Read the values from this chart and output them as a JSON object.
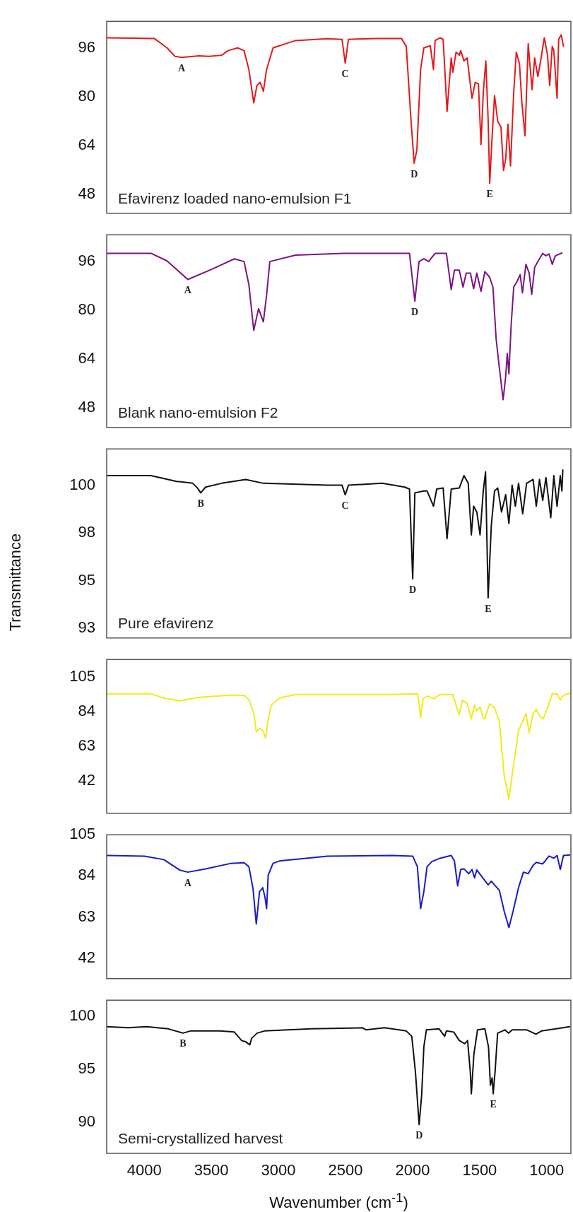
{
  "chart_data": [
    {
      "type": "line",
      "title": "Efavirenz loaded nano-emulsion F1",
      "color": "#e31a1c",
      "xlim": [
        4280,
        820
      ],
      "xticks": [
        4000,
        3500,
        3000,
        2500,
        2000,
        1500,
        1000
      ],
      "ylim": [
        41.8,
        104.7
      ],
      "yticks": [
        48,
        64,
        80,
        96
      ],
      "tick_labels": "y",
      "x": [
        4280,
        3926,
        3830,
        3770,
        3722,
        3591,
        3519,
        3423,
        3375,
        3304,
        3256,
        3220,
        3184,
        3160,
        3136,
        3112,
        3088,
        3040,
        2873,
        2634,
        2526,
        2502,
        2478,
        2275,
        2083,
        2047,
        2011,
        1988,
        1968,
        1940,
        1916,
        1868,
        1844,
        1832,
        1796,
        1772,
        1743,
        1712,
        1700,
        1676,
        1652,
        1641,
        1617,
        1593,
        1557,
        1533,
        1509,
        1490,
        1473,
        1454,
        1437,
        1425,
        1408,
        1389,
        1365,
        1341,
        1322,
        1306,
        1289,
        1270,
        1246,
        1227,
        1203,
        1186,
        1162,
        1138,
        1126,
        1109,
        1090,
        1066,
        1042,
        1018,
        994,
        978,
        959,
        947,
        923,
        911,
        892,
        875
      ],
      "values": [
        99.3,
        99.1,
        96.0,
        93.2,
        92.9,
        93.4,
        93.2,
        93.6,
        95.1,
        96.0,
        95.1,
        88.9,
        78.0,
        83.7,
        84.7,
        81.8,
        88.9,
        96.0,
        98.4,
        99.0,
        98.8,
        91.0,
        98.8,
        99.1,
        99.1,
        96.5,
        71.9,
        58.2,
        62.5,
        88.9,
        96.0,
        96.7,
        88.9,
        98.4,
        99.3,
        98.8,
        75.2,
        92.7,
        88.0,
        94.6,
        93.6,
        95.1,
        91.7,
        92.7,
        79.5,
        84.7,
        84.2,
        64.3,
        81.4,
        91.7,
        72.8,
        51.6,
        66.2,
        80.4,
        71.9,
        70.0,
        55.8,
        59.6,
        71.0,
        57.3,
        81.4,
        94.6,
        90.8,
        78.5,
        67.2,
        97.4,
        90.8,
        82.3,
        92.7,
        86.6,
        92.7,
        99.3,
        93.6,
        83.7,
        96.5,
        95.1,
        79.5,
        98.8,
        100.3,
        96.5
      ],
      "annotations": [
        {
          "text": "A",
          "x": 3722,
          "y": 92.9
        },
        {
          "text": "C",
          "x": 2502,
          "y": 91.0
        },
        {
          "text": "D",
          "x": 1988,
          "y": 58.2
        },
        {
          "text": "E",
          "x": 1425,
          "y": 51.6
        }
      ]
    },
    {
      "type": "line",
      "title": "Blank nano-emulsion F2",
      "color": "#7b1480",
      "xlim": [
        4280,
        820
      ],
      "xticks": [
        4000,
        3500,
        3000,
        2500,
        2000,
        1500,
        1000
      ],
      "ylim": [
        41.5,
        104.8
      ],
      "yticks": [
        48,
        64,
        80,
        96
      ],
      "tick_labels": "y",
      "x": [
        4280,
        3950,
        3830,
        3675,
        3495,
        3328,
        3256,
        3220,
        3184,
        3148,
        3112,
        3088,
        3064,
        2873,
        2514,
        2023,
        1983,
        1952,
        1916,
        1880,
        1832,
        1748,
        1712,
        1688,
        1652,
        1624,
        1600,
        1569,
        1545,
        1521,
        1490,
        1461,
        1425,
        1401,
        1377,
        1353,
        1325,
        1306,
        1294,
        1282,
        1265,
        1246,
        1222,
        1198,
        1181,
        1155,
        1131,
        1112,
        1090,
        1066,
        1030,
        1006,
        983,
        959,
        935,
        887
      ],
      "values": [
        98.7,
        98.7,
        96.2,
        90.1,
        93.5,
        96.9,
        96.0,
        88.4,
        73.4,
        80.5,
        76.2,
        85.0,
        96.0,
        98.1,
        98.7,
        98.7,
        83.0,
        96.0,
        96.9,
        96.0,
        98.7,
        98.7,
        86.8,
        93.2,
        93.2,
        87.6,
        92.2,
        92.2,
        87.1,
        92.2,
        86.2,
        92.7,
        90.8,
        87.6,
        70.5,
        61.0,
        50.6,
        58.2,
        65.8,
        59.1,
        75.3,
        87.6,
        89.4,
        91.7,
        85.7,
        95.1,
        92.2,
        85.2,
        94.1,
        96.0,
        98.7,
        97.9,
        98.5,
        95.1,
        97.9,
        98.8
      ],
      "annotations": [
        {
          "text": "A",
          "x": 3675,
          "y": 90.1
        },
        {
          "text": "D",
          "x": 1983,
          "y": 83.0
        }
      ]
    },
    {
      "type": "line",
      "title": "Pure efavirenz",
      "ylabel": "Transmittance",
      "color": "#111111",
      "xlim": [
        4280,
        820
      ],
      "xticks": [
        4000,
        3500,
        3000,
        2500,
        2000,
        1500,
        1000
      ],
      "ylim": [
        92.5,
        102.4
      ],
      "yticks": [
        93,
        {
          "value": 95.5,
          "label": "95"
        },
        98,
        {
          "value": 100.5,
          "label": "100"
        }
      ],
      "tick_labels": "y",
      "x": [
        4280,
        3950,
        3758,
        3639,
        3603,
        3579,
        3543,
        3423,
        3244,
        3112,
        2634,
        2526,
        2502,
        2478,
        2227,
        2059,
        2023,
        1999,
        1983,
        1916,
        1892,
        1844,
        1820,
        1772,
        1743,
        1712,
        1652,
        1617,
        1585,
        1562,
        1545,
        1521,
        1497,
        1473,
        1456,
        1437,
        1413,
        1389,
        1365,
        1337,
        1306,
        1282,
        1258,
        1234,
        1210,
        1179,
        1150,
        1102,
        1078,
        1054,
        1030,
        1006,
        970,
        947,
        923,
        899,
        887,
        880
      ],
      "values": [
        101.0,
        101.0,
        100.7,
        100.6,
        100.35,
        100.1,
        100.4,
        100.6,
        100.8,
        100.6,
        100.5,
        100.5,
        100.0,
        100.5,
        100.6,
        100.4,
        100.3,
        95.6,
        100.1,
        100.2,
        100.2,
        99.4,
        100.3,
        100.35,
        97.7,
        100.3,
        100.35,
        101.0,
        100.6,
        97.9,
        99.4,
        99.1,
        97.9,
        100.2,
        101.2,
        94.6,
        98.4,
        100.2,
        100.35,
        99.1,
        100.0,
        98.5,
        100.5,
        99.4,
        100.6,
        99.0,
        100.6,
        100.8,
        99.4,
        100.8,
        99.7,
        100.9,
        98.8,
        101.0,
        99.4,
        101.0,
        100.2,
        101.3
      ],
      "annotations": [
        {
          "text": "B",
          "x": 3579,
          "y": 100.1
        },
        {
          "text": "C",
          "x": 2502,
          "y": 100.0
        },
        {
          "text": "D",
          "x": 1999,
          "y": 95.6
        },
        {
          "text": "E",
          "x": 1437,
          "y": 94.6
        }
      ]
    },
    {
      "type": "line",
      "color": "#f2ea1a",
      "xlim": [
        4280,
        820
      ],
      "xticks": [
        4000,
        3500,
        3000,
        2500,
        2000,
        1500,
        1000
      ],
      "ylim": [
        22.4,
        115.6
      ],
      "yticks": [
        42,
        63,
        84,
        105
      ],
      "tick_labels": "y",
      "x": [
        4280,
        3950,
        3854,
        3734,
        3591,
        3352,
        3256,
        3220,
        3184,
        3165,
        3136,
        3112,
        3095,
        3076,
        3052,
        2993,
        2873,
        2155,
        1964,
        1952,
        1940,
        1921,
        1880,
        1844,
        1796,
        1700,
        1676,
        1652,
        1629,
        1593,
        1562,
        1538,
        1521,
        1497,
        1473,
        1461,
        1442,
        1425,
        1389,
        1353,
        1317,
        1282,
        1258,
        1234,
        1210,
        1186,
        1155,
        1131,
        1102,
        1078,
        1054,
        1026,
        994,
        959,
        923,
        899,
        875,
        827
      ],
      "values": [
        94.8,
        94.8,
        92.2,
        90.5,
        92.7,
        94.1,
        93.8,
        91.4,
        82.9,
        71.8,
        74.0,
        71.8,
        67.9,
        79.6,
        88.0,
        92.2,
        94.4,
        94.4,
        94.8,
        89.7,
        80.3,
        92.2,
        93.4,
        91.9,
        94.4,
        94.4,
        88.0,
        82.0,
        91.0,
        89.0,
        79.6,
        88.0,
        84.6,
        86.8,
        80.3,
        79.6,
        84.9,
        88.8,
        86.3,
        77.8,
        45.4,
        31.0,
        45.4,
        59.0,
        72.7,
        76.9,
        82.9,
        71.3,
        82.9,
        85.4,
        81.5,
        79.6,
        86.3,
        94.8,
        94.8,
        91.0,
        93.9,
        95.1
      ]
    },
    {
      "type": "line",
      "color": "#1a1ac8",
      "xlim": [
        4280,
        820
      ],
      "xticks": [
        4000,
        3500,
        3000,
        2500,
        2000,
        1500,
        1000
      ],
      "ylim": [
        31.5,
        105
      ],
      "yticks": [
        42,
        63,
        84,
        105
      ],
      "tick_labels": "y",
      "x": [
        4280,
        3998,
        3854,
        3734,
        3675,
        3543,
        3352,
        3256,
        3220,
        3189,
        3165,
        3141,
        3117,
        3100,
        3088,
        3076,
        3040,
        2993,
        2634,
        2155,
        1999,
        1964,
        1940,
        1916,
        1892,
        1856,
        1796,
        1712,
        1688,
        1664,
        1641,
        1617,
        1581,
        1557,
        1538,
        1521,
        1485,
        1437,
        1413,
        1389,
        1353,
        1317,
        1282,
        1251,
        1210,
        1174,
        1138,
        1102,
        1078,
        1030,
        983,
        947,
        923,
        899,
        875,
        827
      ],
      "values": [
        94.4,
        94.1,
        92.3,
        86.9,
        85.9,
        87.6,
        90.4,
        90.7,
        88.7,
        77.3,
        59.4,
        75.9,
        78.0,
        73.0,
        67.3,
        84.4,
        90.4,
        91.6,
        94.1,
        94.4,
        94.1,
        88.7,
        67.3,
        75.9,
        88.7,
        91.3,
        93.0,
        94.4,
        91.6,
        78.9,
        87.3,
        87.6,
        85.1,
        87.3,
        83.0,
        87.0,
        83.7,
        79.4,
        81.3,
        79.4,
        76.6,
        65.9,
        57.6,
        65.9,
        78.0,
        85.9,
        85.1,
        89.4,
        90.9,
        90.1,
        94.1,
        93.0,
        94.4,
        87.3,
        94.4,
        94.7
      ],
      "annotations": [
        {
          "text": "A",
          "x": 3675,
          "y": 85.9
        }
      ]
    },
    {
      "type": "line",
      "title": "Semi-crystallized harvest",
      "xlabel": "Wavenumber (cm$^{-1}$)",
      "color": "#111111",
      "xlim": [
        4280,
        820
      ],
      "xticks": [
        4000,
        3500,
        3000,
        2500,
        2000,
        1500,
        1000
      ],
      "ylim": [
        87.1,
        101.5
      ],
      "yticks": [
        90,
        95,
        100
      ],
      "x": [
        4280,
        4120,
        3984,
        3820,
        3711,
        3656,
        3438,
        3329,
        3274,
        3247,
        3213,
        3200,
        3159,
        3104,
        2755,
        2373,
        2346,
        2210,
        2047,
        2006,
        1979,
        1951,
        1932,
        1916,
        1897,
        1802,
        1761,
        1748,
        1693,
        1652,
        1611,
        1590,
        1570,
        1562,
        1543,
        1516,
        1461,
        1434,
        1420,
        1407,
        1399,
        1385,
        1366,
        1312,
        1285,
        1257,
        1148,
        1080,
        1039,
        930,
        829
      ],
      "values": [
        99.0,
        98.9,
        99.0,
        98.8,
        98.4,
        98.6,
        98.6,
        98.5,
        97.7,
        97.6,
        97.3,
        97.9,
        98.4,
        98.6,
        98.8,
        98.9,
        98.7,
        98.9,
        98.6,
        98.1,
        94.8,
        89.8,
        92.6,
        97.1,
        98.7,
        98.8,
        98.1,
        98.6,
        98.5,
        97.7,
        97.4,
        97.7,
        94.8,
        92.7,
        96.4,
        98.7,
        98.8,
        97.1,
        93.5,
        94.2,
        92.7,
        94.8,
        98.4,
        98.7,
        98.4,
        98.7,
        98.7,
        98.3,
        98.6,
        98.8,
        99.0
      ],
      "annotations": [
        {
          "text": "B",
          "x": 3711,
          "y": 98.4
        },
        {
          "text": "D",
          "x": 1951,
          "y": 89.8
        },
        {
          "text": "E",
          "x": 1399,
          "y": 92.7
        }
      ]
    }
  ]
}
